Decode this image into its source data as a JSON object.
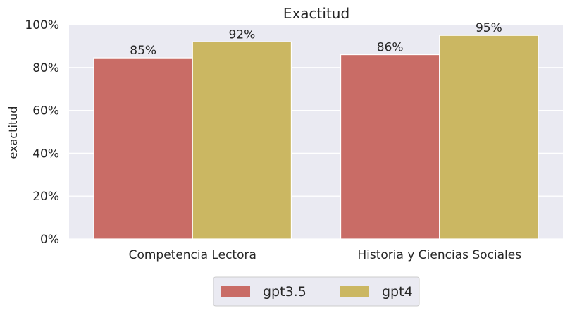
{
  "chart_data": {
    "type": "bar",
    "title": "Exactitud",
    "xlabel": "",
    "ylabel": "exactitud",
    "categories": [
      "Competencia Lectora",
      "Historia y Ciencias Sociales"
    ],
    "series": [
      {
        "name": "gpt3.5",
        "color": "#c96c66",
        "values": [
          0.845,
          0.86
        ],
        "labels": [
          "85%",
          "86%"
        ]
      },
      {
        "name": "gpt4",
        "color": "#cbb762",
        "values": [
          0.92,
          0.95
        ],
        "labels": [
          "92%",
          "95%"
        ]
      }
    ],
    "ylim": [
      0,
      1
    ],
    "yticks": [
      0,
      0.2,
      0.4,
      0.6,
      0.8,
      1.0
    ],
    "ytick_labels": [
      "0%",
      "20%",
      "40%",
      "60%",
      "80%",
      "100%"
    ],
    "grid": true,
    "legend_position": "bottom-center",
    "plot_background": "#eaeaf2"
  }
}
